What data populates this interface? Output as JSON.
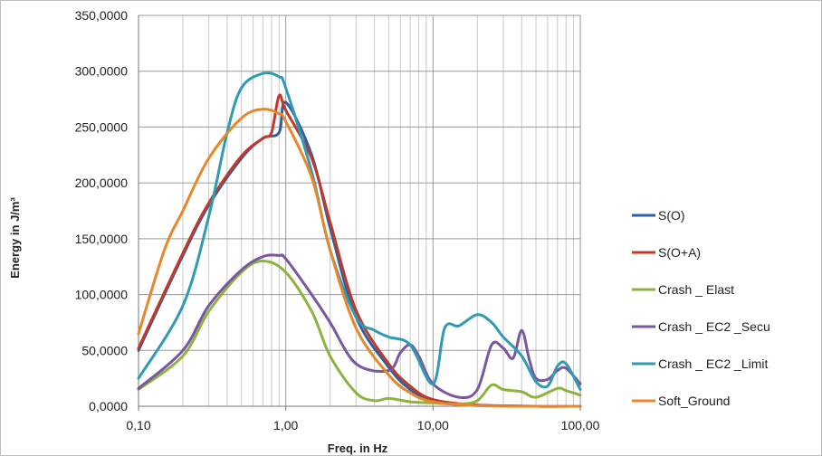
{
  "chart_data": {
    "type": "line",
    "xscale": "log",
    "xlim": [
      0.1,
      100
    ],
    "ylim": [
      0,
      350000
    ],
    "xlabel": "Freq. in Hz",
    "ylabel": "Energy in J/m³",
    "x_tick_labels": [
      "0,10",
      "1,00",
      "10,00",
      "100,00"
    ],
    "y_tick_labels": [
      "0,0000",
      "50,0000",
      "100,0000",
      "150,0000",
      "200,0000",
      "250,0000",
      "300,0000",
      "350,0000"
    ],
    "grid": true,
    "legend_position": "right",
    "series": [
      {
        "name": "S(O)",
        "color": "#2f5fa0",
        "x": [
          0.1,
          0.2,
          0.3,
          0.5,
          0.7,
          0.9,
          1.0,
          1.5,
          2.0,
          3.0,
          5.0,
          7.0,
          10.0,
          20.0,
          50.0,
          100.0
        ],
        "y": [
          50000,
          135000,
          180000,
          222000,
          240000,
          245000,
          272000,
          225000,
          160000,
          80000,
          35000,
          15000,
          5000,
          1000,
          0,
          0
        ]
      },
      {
        "name": "S(O+A)",
        "color": "#c0392b",
        "x": [
          0.1,
          0.2,
          0.3,
          0.5,
          0.7,
          0.8,
          0.9,
          1.0,
          1.5,
          2.0,
          3.0,
          5.0,
          7.0,
          10.0,
          20.0,
          50.0,
          100.0
        ],
        "y": [
          52000,
          137000,
          182000,
          224000,
          240000,
          245000,
          278000,
          265000,
          222000,
          165000,
          86000,
          38000,
          18000,
          6000,
          1000,
          0,
          0
        ]
      },
      {
        "name": "Crash _ Elast",
        "color": "#8db33f",
        "x": [
          0.1,
          0.2,
          0.3,
          0.5,
          0.7,
          1.0,
          1.5,
          2.0,
          3.0,
          4.0,
          5.0,
          7.0,
          10.0,
          15.0,
          20.0,
          25.0,
          30.0,
          40.0,
          50.0,
          70.0,
          80.0,
          100.0
        ],
        "y": [
          15000,
          45000,
          85000,
          120000,
          130000,
          120000,
          85000,
          45000,
          12000,
          5000,
          7000,
          4000,
          3000,
          2000,
          5000,
          19000,
          15000,
          13000,
          8000,
          16000,
          14000,
          10000
        ]
      },
      {
        "name": "Crash _ EC2 _Secu",
        "color": "#7a55a0",
        "x": [
          0.1,
          0.2,
          0.3,
          0.5,
          0.7,
          0.9,
          1.0,
          1.5,
          2.0,
          3.0,
          5.0,
          6.0,
          7.0,
          8.0,
          10.0,
          15.0,
          20.0,
          25.0,
          30.0,
          35.0,
          40.0,
          45.0,
          50.0,
          60.0,
          70.0,
          80.0,
          100.0
        ],
        "y": [
          16000,
          50000,
          90000,
          122000,
          134000,
          135000,
          132000,
          100000,
          75000,
          38000,
          32000,
          48000,
          55000,
          45000,
          20000,
          8000,
          15000,
          55000,
          52000,
          43000,
          68000,
          42000,
          25000,
          24000,
          32000,
          34000,
          20000
        ]
      },
      {
        "name": "Crash _ EC2 _Limit",
        "color": "#2e9ab3",
        "x": [
          0.1,
          0.2,
          0.3,
          0.4,
          0.5,
          0.7,
          0.9,
          1.0,
          1.5,
          2.0,
          3.0,
          4.0,
          5.0,
          7.0,
          10.0,
          12.0,
          15.0,
          20.0,
          25.0,
          30.0,
          40.0,
          50.0,
          60.0,
          70.0,
          80.0,
          100.0
        ],
        "y": [
          25000,
          90000,
          170000,
          245000,
          285000,
          298000,
          295000,
          285000,
          210000,
          140000,
          80000,
          68000,
          62000,
          55000,
          20000,
          70000,
          72000,
          82000,
          75000,
          62000,
          45000,
          22000,
          18000,
          36000,
          38000,
          15000
        ]
      },
      {
        "name": "Soft_Ground",
        "color": "#e8862a",
        "x": [
          0.1,
          0.15,
          0.2,
          0.3,
          0.5,
          0.7,
          0.9,
          1.0,
          1.5,
          2.0,
          3.0,
          5.0,
          7.0,
          10.0,
          20.0,
          50.0,
          100.0
        ],
        "y": [
          65000,
          140000,
          175000,
          222000,
          258000,
          266000,
          262000,
          255000,
          205000,
          140000,
          70000,
          28000,
          12000,
          4000,
          500,
          0,
          0
        ]
      }
    ]
  }
}
